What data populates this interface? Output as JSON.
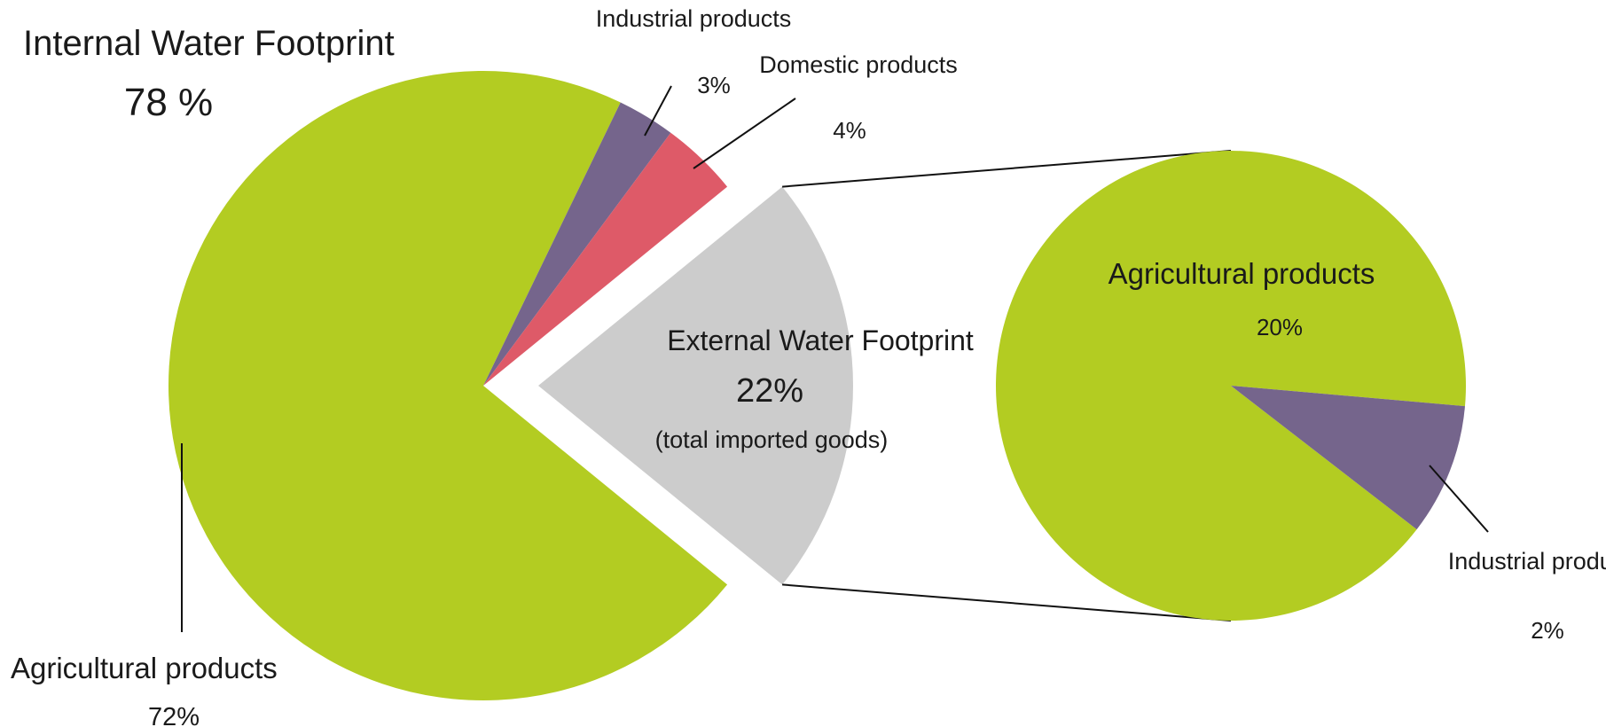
{
  "chart_data": [
    {
      "type": "pie",
      "labels": {
        "internal_title": "Internal Water Footprint",
        "internal_value": "78 %"
      },
      "slices": [
        {
          "name": "Agricultural products",
          "value": 72,
          "label": "72%",
          "color": "#b3cc22"
        },
        {
          "name": "Industrial products",
          "value": 3,
          "label": "3%",
          "color": "#75658c"
        },
        {
          "name": "Domestic products",
          "value": 4,
          "label": "4%",
          "color": "#de5a68"
        },
        {
          "name": "External Water Footprint",
          "value": 22,
          "label": "22%",
          "note": "(total imported goods)",
          "color": "#cccccc",
          "exploded": true
        }
      ]
    },
    {
      "type": "pie",
      "slices": [
        {
          "name": "Agricultural products",
          "value": 20,
          "label": "20%",
          "color": "#b3cc22"
        },
        {
          "name": "Industrial products",
          "value": 2,
          "label": "2%",
          "color": "#75658c"
        }
      ]
    }
  ]
}
